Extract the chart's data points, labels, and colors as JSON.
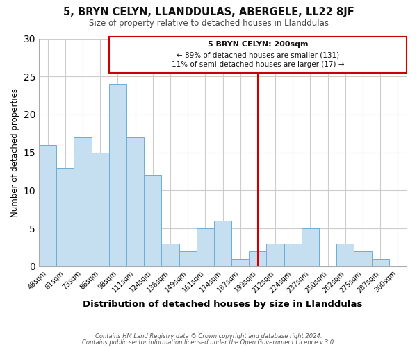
{
  "title": "5, BRYN CELYN, LLANDDULAS, ABERGELE, LL22 8JF",
  "subtitle": "Size of property relative to detached houses in Llanddulas",
  "xlabel": "Distribution of detached houses by size in Llanddulas",
  "ylabel": "Number of detached properties",
  "bar_labels": [
    "48sqm",
    "61sqm",
    "73sqm",
    "86sqm",
    "98sqm",
    "111sqm",
    "124sqm",
    "136sqm",
    "149sqm",
    "161sqm",
    "174sqm",
    "187sqm",
    "199sqm",
    "212sqm",
    "224sqm",
    "237sqm",
    "250sqm",
    "262sqm",
    "275sqm",
    "287sqm",
    "300sqm"
  ],
  "bar_values": [
    16,
    13,
    17,
    15,
    24,
    17,
    12,
    3,
    2,
    5,
    6,
    1,
    2,
    3,
    3,
    5,
    0,
    3,
    2,
    1,
    0
  ],
  "bar_color": "#c5dff0",
  "bar_edge_color": "#6baed6",
  "reference_line_x_label": "199sqm",
  "reference_line_color": "#cc0000",
  "annotation_title": "5 BRYN CELYN: 200sqm",
  "annotation_line1": "← 89% of detached houses are smaller (131)",
  "annotation_line2": "11% of semi-detached houses are larger (17) →",
  "annotation_box_color": "#cc0000",
  "ylim": [
    0,
    30
  ],
  "yticks": [
    0,
    5,
    10,
    15,
    20,
    25,
    30
  ],
  "footer1": "Contains HM Land Registry data © Crown copyright and database right 2024.",
  "footer2": "Contains public sector information licensed under the Open Government Licence v.3.0.",
  "bg_color": "#ffffff",
  "grid_color": "#cccccc"
}
